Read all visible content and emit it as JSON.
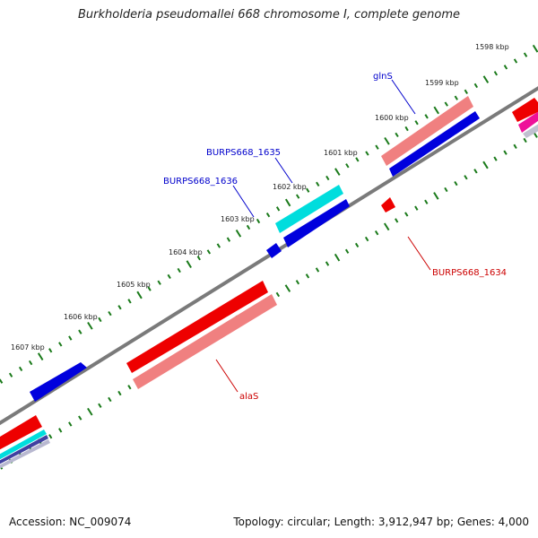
{
  "title": "Burkholderia pseudomallei 668 chromosome I, complete genome",
  "footer": {
    "accession": "Accession: NC_009074",
    "summary": "Topology: circular; Length: 3,912,947 bp; Genes: 4,000"
  },
  "ticks": [
    {
      "label": "1598 kbp",
      "kbp": 1598
    },
    {
      "label": "1599 kbp",
      "kbp": 1599
    },
    {
      "label": "1600 kbp",
      "kbp": 1600
    },
    {
      "label": "1601 kbp",
      "kbp": 1601
    },
    {
      "label": "1602 kbp",
      "kbp": 1602
    },
    {
      "label": "1603 kbp",
      "kbp": 1603
    },
    {
      "label": "1604 kbp",
      "kbp": 1604
    },
    {
      "label": "1605 kbp",
      "kbp": 1605
    },
    {
      "label": "1606 kbp",
      "kbp": 1606
    },
    {
      "label": "1607 kbp",
      "kbp": 1607
    }
  ],
  "gene_labels": [
    {
      "name": "glnS",
      "color": "#0000cc"
    },
    {
      "name": "BURPS668_1635",
      "color": "#0000cc"
    },
    {
      "name": "BURPS668_1636",
      "color": "#0000cc"
    },
    {
      "name": "BURPS668_1634",
      "color": "#cc0000"
    },
    {
      "name": "alaS",
      "color": "#cc0000"
    }
  ],
  "colors": {
    "backbone": "#808080",
    "tick_marks": "#1a7a1a",
    "cds_forward": "#ee0000",
    "cds_reverse": "#0000dd",
    "rrna": "#f08080",
    "trna": "#00dddd",
    "other": "#ee1199"
  }
}
